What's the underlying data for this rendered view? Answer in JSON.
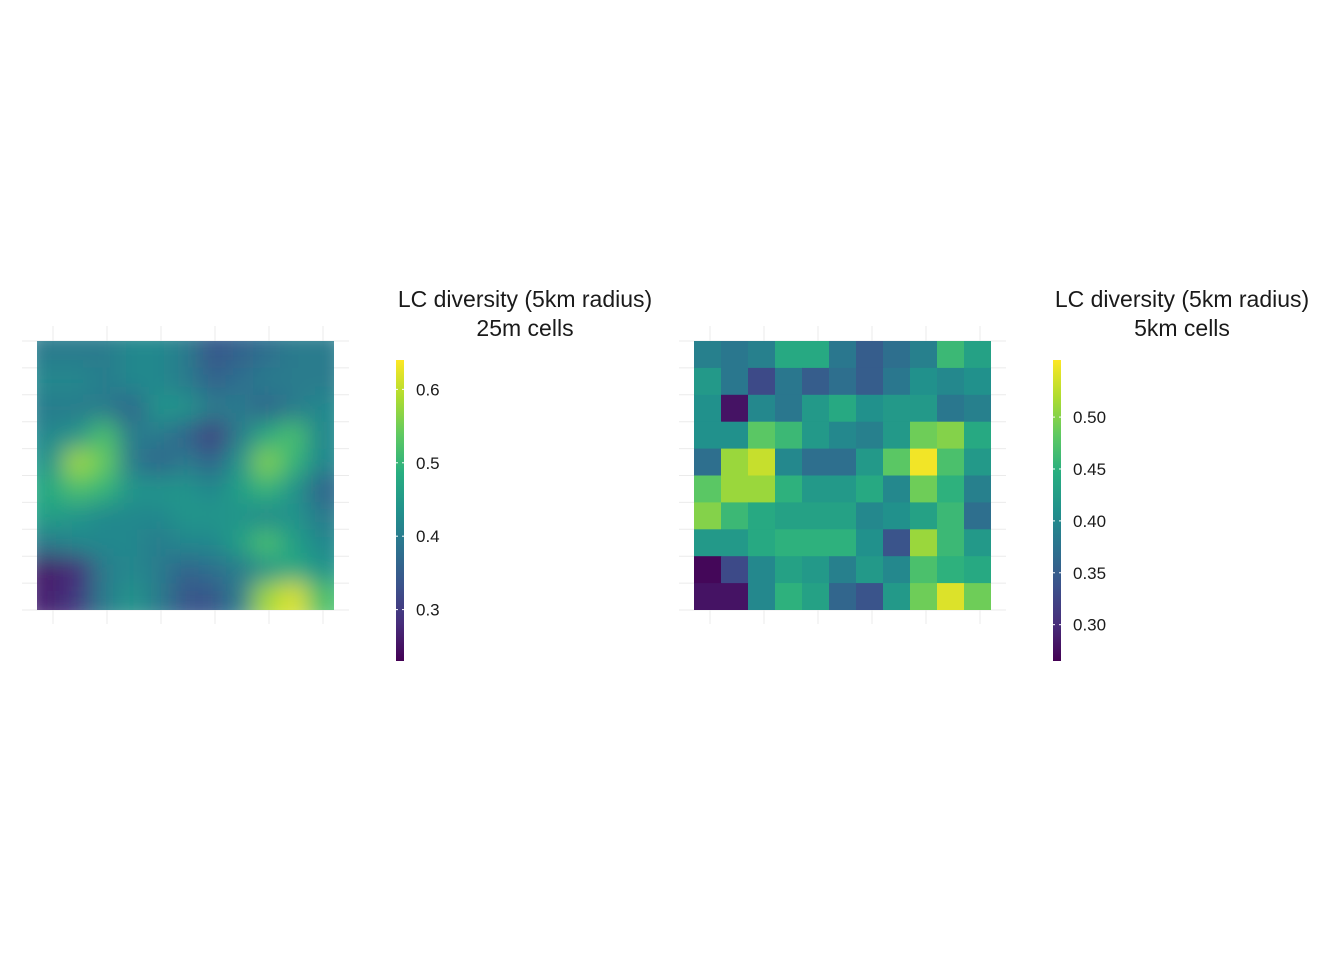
{
  "chart_data": [
    {
      "type": "heatmap",
      "title_lines": [
        "LC diversity (5km radius)",
        "25m cells"
      ],
      "legend": {
        "placement": "right",
        "range": [
          0.23,
          0.64
        ],
        "ticks": [
          0.3,
          0.4,
          0.5,
          0.6
        ],
        "tick_labels": [
          "0.3",
          "0.4",
          "0.5",
          "0.6"
        ]
      },
      "colormap": "viridis",
      "axes_text": false,
      "grid": true,
      "smooth": true,
      "ncols": 11,
      "nrows": 10,
      "values": [
        [
          0.4,
          0.4,
          0.4,
          0.42,
          0.42,
          0.4,
          0.34,
          0.36,
          0.38,
          0.4,
          0.4
        ],
        [
          0.42,
          0.42,
          0.4,
          0.42,
          0.42,
          0.4,
          0.36,
          0.38,
          0.4,
          0.4,
          0.4
        ],
        [
          0.4,
          0.4,
          0.4,
          0.36,
          0.44,
          0.44,
          0.4,
          0.4,
          0.36,
          0.4,
          0.42
        ],
        [
          0.42,
          0.44,
          0.52,
          0.4,
          0.4,
          0.36,
          0.3,
          0.4,
          0.48,
          0.52,
          0.42
        ],
        [
          0.44,
          0.58,
          0.54,
          0.4,
          0.36,
          0.4,
          0.36,
          0.44,
          0.56,
          0.5,
          0.42
        ],
        [
          0.48,
          0.52,
          0.5,
          0.44,
          0.44,
          0.44,
          0.42,
          0.46,
          0.5,
          0.44,
          0.36
        ],
        [
          0.46,
          0.44,
          0.42,
          0.42,
          0.42,
          0.44,
          0.44,
          0.44,
          0.42,
          0.44,
          0.4
        ],
        [
          0.4,
          0.42,
          0.42,
          0.42,
          0.4,
          0.42,
          0.42,
          0.46,
          0.52,
          0.46,
          0.42
        ],
        [
          0.26,
          0.28,
          0.4,
          0.42,
          0.4,
          0.36,
          0.38,
          0.4,
          0.44,
          0.48,
          0.44
        ],
        [
          0.27,
          0.3,
          0.4,
          0.44,
          0.4,
          0.34,
          0.34,
          0.4,
          0.58,
          0.62,
          0.52
        ]
      ]
    },
    {
      "type": "heatmap",
      "title_lines": [
        "LC diversity (5km radius)",
        "5km cells"
      ],
      "legend": {
        "placement": "right",
        "range": [
          0.265,
          0.555
        ],
        "ticks": [
          0.3,
          0.35,
          0.4,
          0.45,
          0.5
        ],
        "tick_labels": [
          "0.30",
          "0.35",
          "0.40",
          "0.45",
          "0.50"
        ]
      },
      "colormap": "viridis",
      "axes_text": false,
      "grid": true,
      "smooth": false,
      "ncols": 11,
      "nrows": 10,
      "values": [
        [
          0.39,
          0.38,
          0.39,
          0.44,
          0.44,
          0.38,
          0.35,
          0.37,
          0.39,
          0.46,
          0.43
        ],
        [
          0.42,
          0.38,
          0.33,
          0.38,
          0.35,
          0.37,
          0.35,
          0.38,
          0.41,
          0.4,
          0.41
        ],
        [
          0.41,
          0.28,
          0.4,
          0.38,
          0.42,
          0.44,
          0.41,
          0.42,
          0.42,
          0.38,
          0.39
        ],
        [
          0.41,
          0.41,
          0.48,
          0.46,
          0.42,
          0.4,
          0.39,
          0.42,
          0.49,
          0.5,
          0.44
        ],
        [
          0.37,
          0.51,
          0.53,
          0.4,
          0.37,
          0.37,
          0.42,
          0.48,
          0.55,
          0.47,
          0.42
        ],
        [
          0.48,
          0.51,
          0.51,
          0.45,
          0.42,
          0.42,
          0.44,
          0.4,
          0.49,
          0.45,
          0.39
        ],
        [
          0.5,
          0.46,
          0.44,
          0.43,
          0.43,
          0.43,
          0.4,
          0.41,
          0.43,
          0.46,
          0.37
        ],
        [
          0.42,
          0.42,
          0.44,
          0.45,
          0.45,
          0.45,
          0.41,
          0.34,
          0.51,
          0.46,
          0.42
        ],
        [
          0.27,
          0.33,
          0.4,
          0.43,
          0.42,
          0.39,
          0.42,
          0.4,
          0.47,
          0.45,
          0.44
        ],
        [
          0.28,
          0.28,
          0.4,
          0.45,
          0.43,
          0.36,
          0.34,
          0.42,
          0.49,
          0.54,
          0.49
        ]
      ]
    }
  ]
}
